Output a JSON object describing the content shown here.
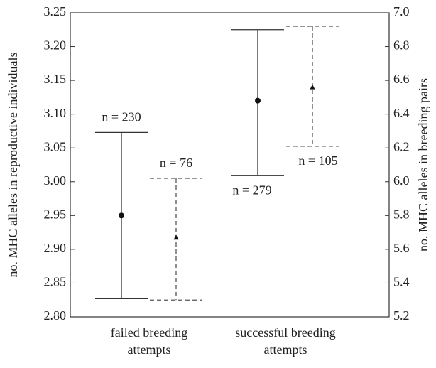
{
  "chart_data": {
    "type": "errorbar",
    "categories": [
      [
        "failed breeding",
        "attempts"
      ],
      [
        "successful breeding",
        "attempts"
      ]
    ],
    "ylabel": "no. MHC alleles in reproductive individuals",
    "y2label": "no. MHC alleles in breeding pairs",
    "ylim": [
      2.8,
      3.25
    ],
    "yticks": [
      {
        "value": 2.8,
        "label": "2.80"
      },
      2.85,
      {
        "value": 2.9,
        "label": "2.90"
      },
      2.95,
      {
        "value": 3.0,
        "label": "3.00"
      },
      3.05,
      {
        "value": 3.1,
        "label": "3.10"
      },
      3.15,
      {
        "value": 3.2,
        "label": "3.20"
      },
      3.25
    ],
    "y2lim": [
      5.2,
      7.0
    ],
    "y2ticks": [
      5.2,
      5.4,
      5.6,
      5.8,
      {
        "value": 6.0,
        "label": "6.0"
      },
      6.2,
      6.4,
      6.6,
      6.8,
      {
        "value": 7.0,
        "label": "7.0"
      }
    ],
    "series": [
      {
        "color": "#333333",
        "dashed": false,
        "marker": "circle",
        "values": [
          2.95,
          3.12
        ],
        "lower": [
          2.827,
          3.009
        ],
        "upper": [
          3.073,
          3.225
        ],
        "n_labels": [
          "n = 230",
          "n = 279"
        ]
      },
      {
        "color": "#555555",
        "dashed": true,
        "marker": "triangle",
        "axis": "y2",
        "values": [
          5.67,
          6.56
        ],
        "lower": [
          5.3,
          6.21
        ],
        "upper": [
          6.02,
          6.92
        ],
        "n_labels": [
          "n = 76",
          "n = 105"
        ]
      }
    ]
  }
}
